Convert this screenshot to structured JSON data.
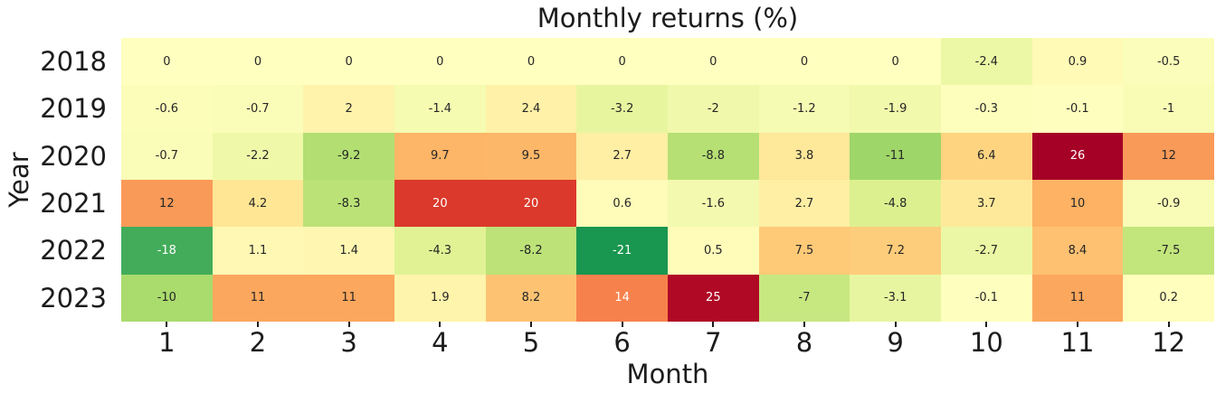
{
  "chart_data": {
    "type": "heatmap",
    "title": "Monthly returns (%)",
    "xlabel": "Month",
    "ylabel": "Year",
    "x_ticks": [
      "1",
      "2",
      "3",
      "4",
      "5",
      "6",
      "7",
      "8",
      "9",
      "10",
      "11",
      "12"
    ],
    "y_ticks": [
      "2018",
      "2019",
      "2020",
      "2021",
      "2022",
      "2023"
    ],
    "series": [
      {
        "name": "2018",
        "values": [
          0,
          0,
          0,
          0,
          0,
          0,
          0,
          0,
          0,
          -2.4,
          0.9,
          -0.5
        ]
      },
      {
        "name": "2019",
        "values": [
          -0.6,
          -0.7,
          2,
          -1.4,
          2.4,
          -3.2,
          -2,
          -1.2,
          -1.9,
          -0.3,
          -0.1,
          -1
        ]
      },
      {
        "name": "2020",
        "values": [
          -0.7,
          -2.2,
          -9.2,
          9.7,
          9.5,
          2.7,
          -8.8,
          3.8,
          -11,
          6.4,
          26,
          12
        ]
      },
      {
        "name": "2021",
        "values": [
          12,
          4.2,
          -8.3,
          20,
          20,
          0.6,
          -1.6,
          2.7,
          -4.8,
          3.7,
          10,
          -0.9
        ]
      },
      {
        "name": "2022",
        "values": [
          -18,
          1.1,
          1.4,
          -4.3,
          -8.2,
          -21,
          0.5,
          7.5,
          7.2,
          -2.7,
          8.4,
          -7.5
        ]
      },
      {
        "name": "2023",
        "values": [
          -10,
          11,
          11,
          1.9,
          8.2,
          14,
          25,
          -7,
          -3.1,
          -0.1,
          11,
          0.2
        ]
      }
    ],
    "colormap": {
      "name": "RdYlGn_r",
      "vmin": -26,
      "vmax": 26,
      "center": 0,
      "anchors": [
        [
          0.0,
          "#a50026"
        ],
        [
          0.1,
          "#d73027"
        ],
        [
          0.2,
          "#f46d43"
        ],
        [
          0.3,
          "#fdae61"
        ],
        [
          0.4,
          "#fee08b"
        ],
        [
          0.5,
          "#ffffbf"
        ],
        [
          0.6,
          "#d9ef8b"
        ],
        [
          0.7,
          "#a6d96a"
        ],
        [
          0.8,
          "#66bd63"
        ],
        [
          0.9,
          "#1a9850"
        ],
        [
          1.0,
          "#006837"
        ]
      ]
    },
    "annotation_text_colors": {
      "dark": "#262626",
      "light": "#ffffff"
    },
    "axis_text_color": "#1c1c1c",
    "legend": "none",
    "grid": false
  }
}
